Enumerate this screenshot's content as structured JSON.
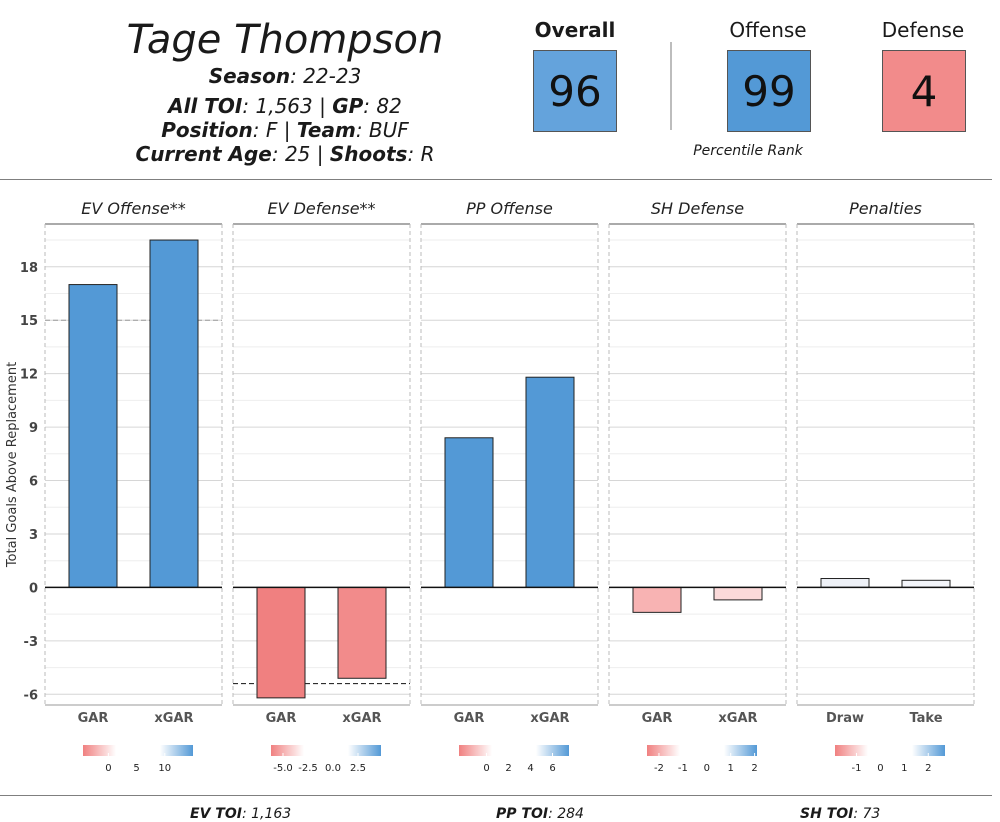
{
  "player": {
    "name": "Tage Thompson",
    "season_label": "Season",
    "season": "22-23",
    "toi_label": "All TOI",
    "toi": "1,563",
    "gp_label": "GP",
    "gp": "82",
    "position_label": "Position",
    "position": "F",
    "team_label": "Team",
    "team": "BUF",
    "age_label": "Current Age",
    "age": "25",
    "shoots_label": "Shoots",
    "shoots": "R",
    "sep": "|"
  },
  "ranks": {
    "overall_label": "Overall",
    "overall": "96",
    "offense_label": "Offense",
    "offense": "99",
    "defense_label": "Defense",
    "defense": "4",
    "percentile_label": "Percentile Rank",
    "colors": {
      "overall": "#64a3dc",
      "offense": "#5399d6",
      "defense": "#f28b8b"
    }
  },
  "footer": {
    "ev_label": "EV TOI",
    "ev_value": "1,163",
    "pp_label": "PP TOI",
    "pp_value": "284",
    "sh_label": "SH TOI",
    "sh_value": "73"
  },
  "chart_data": {
    "type": "bar",
    "ylabel": "Total Goals Above Replacement",
    "ylim": [
      -6.6,
      20.4
    ],
    "yticks": [
      -6,
      -3,
      0,
      3,
      6,
      9,
      12,
      15,
      18
    ],
    "grid": true,
    "colors": {
      "positive": "#5399d6",
      "negative": "#f08080",
      "neutral": "#f5f7fb"
    },
    "panels": [
      {
        "title": "EV Offense**",
        "categories": [
          "GAR",
          "xGAR"
        ],
        "values": [
          17.0,
          19.5
        ],
        "bar_colors": [
          "#5399d6",
          "#5399d6"
        ],
        "reference": 15.0,
        "legend_ticks": [
          "0",
          "5",
          "10"
        ],
        "legend_range": [
          -4.5,
          15
        ]
      },
      {
        "title": "EV Defense**",
        "categories": [
          "GAR",
          "xGAR"
        ],
        "values": [
          -6.2,
          -5.1
        ],
        "bar_colors": [
          "#f08080",
          "#f28b8b"
        ],
        "reference": -5.4,
        "legend_ticks": [
          "-5.0",
          "-2.5",
          "0.0",
          "2.5"
        ],
        "legend_range": [
          -6.2,
          4.8
        ]
      },
      {
        "title": "PP Offense",
        "categories": [
          "GAR",
          "xGAR"
        ],
        "values": [
          8.4,
          11.8
        ],
        "bar_colors": [
          "#5399d6",
          "#5399d6"
        ],
        "reference": null,
        "legend_ticks": [
          "0",
          "2",
          "4",
          "6"
        ],
        "legend_range": [
          -2.5,
          7.5
        ]
      },
      {
        "title": "SH Defense",
        "categories": [
          "GAR",
          "xGAR"
        ],
        "values": [
          -1.4,
          -0.7
        ],
        "bar_colors": [
          "#f8b3b3",
          "#fbdada"
        ],
        "reference": null,
        "legend_ticks": [
          "-2",
          "-1",
          "0",
          "1",
          "2"
        ],
        "legend_range": [
          -2.5,
          2.1
        ]
      },
      {
        "title": "Penalties",
        "categories": [
          "Draw",
          "Take"
        ],
        "values": [
          0.5,
          0.4
        ],
        "bar_colors": [
          "#eef1f7",
          "#f3f5fa"
        ],
        "reference": null,
        "legend_ticks": [
          "-1",
          "0",
          "1",
          "2"
        ],
        "legend_range": [
          -1.9,
          2.7
        ]
      }
    ]
  }
}
